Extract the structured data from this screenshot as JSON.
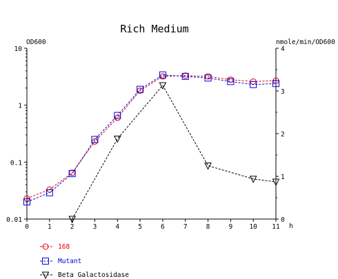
{
  "chart_data": {
    "type": "line",
    "title": "Rich Medium",
    "ylabel_left": "OD600",
    "ylabel_right": "nmole/min/OD600",
    "xlabel": "h",
    "x_ticks": [
      "0",
      "1",
      "2",
      "3",
      "4",
      "5",
      "6",
      "7",
      "8",
      "9",
      "10",
      "11"
    ],
    "left_y_scale": "log",
    "left_ylim": [
      0.01,
      10
    ],
    "left_y_ticks": [
      "0.01",
      "0.1",
      "1",
      "10"
    ],
    "right_ylim": [
      0,
      4
    ],
    "right_y_ticks": [
      "0",
      "1",
      "2",
      "3",
      "4"
    ],
    "grid": false,
    "legend_position": "bottom-left",
    "series": [
      {
        "name": "168",
        "axis": "left",
        "color": "#e00000",
        "marker": "circle",
        "x": [
          0,
          1,
          2,
          3,
          4,
          5,
          6,
          7,
          8,
          9,
          10,
          11
        ],
        "values": [
          0.023,
          0.033,
          0.065,
          0.23,
          0.6,
          1.8,
          3.2,
          3.3,
          3.2,
          2.8,
          2.6,
          2.7
        ]
      },
      {
        "name": "Mutant",
        "axis": "left",
        "color": "#0000e0",
        "marker": "square",
        "x": [
          0,
          1,
          2,
          3,
          4,
          5,
          6,
          7,
          8,
          9,
          10,
          11
        ],
        "values": [
          0.02,
          0.029,
          0.063,
          0.25,
          0.66,
          1.9,
          3.4,
          3.2,
          3.0,
          2.6,
          2.3,
          2.4
        ]
      },
      {
        "name": "Beta Galactosidase",
        "axis": "right",
        "color": "#000000",
        "marker": "triangle-down",
        "x": [
          2,
          4,
          6,
          8,
          10,
          11
        ],
        "values": [
          0,
          1.88,
          3.13,
          1.25,
          0.94,
          0.87
        ]
      }
    ]
  }
}
